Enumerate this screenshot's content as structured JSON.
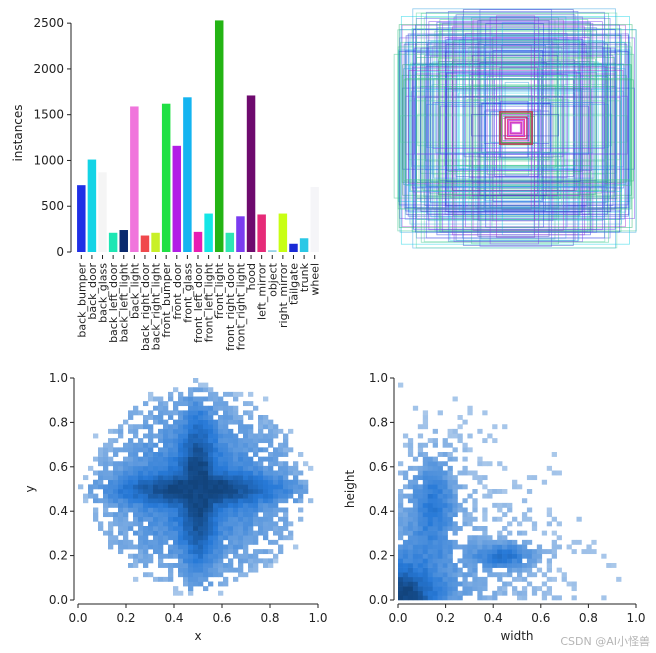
{
  "watermark": "CSDN @AI小怪兽",
  "chart_data": [
    {
      "type": "bar",
      "ylabel": "instances",
      "ylim": [
        0,
        2600
      ],
      "yticks": [
        0,
        500,
        1000,
        1500,
        2000,
        2500
      ],
      "categories": [
        "back_bumper",
        "back_door",
        "back_glass",
        "back_left_door",
        "back_left_light",
        "back_light",
        "back_right_door",
        "back_right_light",
        "front_bumper",
        "front_door",
        "front_glass",
        "front_left_door",
        "front_left_light",
        "front_light",
        "front_right_door",
        "front_right_light",
        "hood",
        "left_mirror",
        "object",
        "right_mirror",
        "tailgate",
        "trunk",
        "wheel"
      ],
      "values": [
        730,
        1010,
        870,
        210,
        240,
        1590,
        180,
        210,
        1620,
        1160,
        1690,
        220,
        420,
        2530,
        210,
        390,
        1710,
        410,
        20,
        420,
        90,
        150,
        710
      ],
      "colors": [
        "#1f2fe6",
        "#13d4e6",
        "#f5f5f5",
        "#1ee6b4",
        "#0a2a6e",
        "#f075dc",
        "#f0484c",
        "#c8f028",
        "#20e044",
        "#b21ee6",
        "#14b4f0",
        "#e61eb4",
        "#14e6e6",
        "#24b414",
        "#2ee6b4",
        "#7a3cf0",
        "#6e0a6e",
        "#e62a78",
        "#96d2e6",
        "#c8ff14",
        "#1a2ad6",
        "#2ac8e6",
        "#f5f5f8"
      ]
    },
    {
      "type": "bounding-box-overlay",
      "description_series": "label box outlines centered on image"
    },
    {
      "type": "heatmap",
      "xlabel": "x",
      "ylabel": "y",
      "xlim": [
        0,
        1
      ],
      "ylim": [
        0,
        1
      ],
      "xticks": [
        "0.0",
        "0.2",
        "0.4",
        "0.6",
        "0.8",
        "1.0"
      ],
      "yticks": [
        "0.0",
        "0.2",
        "0.4",
        "0.6",
        "0.8",
        "1.0"
      ]
    },
    {
      "type": "heatmap",
      "xlabel": "width",
      "ylabel": "height",
      "xlim": [
        0,
        1
      ],
      "ylim": [
        0,
        1
      ],
      "xticks": [
        "0.0",
        "0.2",
        "0.4",
        "0.6",
        "0.8",
        "1.0"
      ],
      "yticks": [
        "0.0",
        "0.2",
        "0.4",
        "0.6",
        "0.8",
        "1.0"
      ]
    }
  ]
}
